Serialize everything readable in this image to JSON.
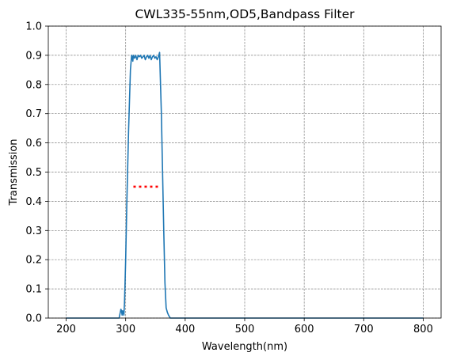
{
  "chart_data": {
    "type": "line",
    "title": "CWL335-55nm,OD5,Bandpass Filter",
    "xlabel": "Wavelength(nm)",
    "ylabel": "Transmission",
    "xlim": [
      170,
      830
    ],
    "ylim": [
      0.0,
      1.0
    ],
    "xticks": [
      200,
      300,
      400,
      500,
      600,
      700,
      800
    ],
    "yticks": [
      0.0,
      0.1,
      0.2,
      0.3,
      0.4,
      0.5,
      0.6,
      0.7,
      0.8,
      0.9,
      1.0
    ],
    "grid": true,
    "colors": {
      "series": "#1f77b4",
      "marker": "#ff0000"
    },
    "series": [
      {
        "style": "solid",
        "x": [
          200,
          289,
          291,
          292,
          293,
          294,
          295,
          296,
          297,
          298,
          300,
          302,
          305,
          308,
          310,
          311,
          312,
          313,
          315,
          317,
          319,
          321,
          323,
          325,
          327,
          329,
          331,
          333,
          335,
          337,
          339,
          341,
          343,
          345,
          347,
          349,
          351,
          353,
          355,
          357,
          358,
          360,
          362,
          364,
          366,
          368,
          370,
          372,
          375,
          378,
          380,
          800
        ],
        "y": [
          0.0,
          0.0,
          0.02,
          0.03,
          0.025,
          0.01,
          0.025,
          0.02,
          0.01,
          0.05,
          0.2,
          0.4,
          0.65,
          0.85,
          0.9,
          0.895,
          0.88,
          0.9,
          0.89,
          0.9,
          0.885,
          0.9,
          0.895,
          0.9,
          0.89,
          0.895,
          0.9,
          0.885,
          0.895,
          0.9,
          0.89,
          0.9,
          0.885,
          0.895,
          0.9,
          0.89,
          0.895,
          0.885,
          0.895,
          0.91,
          0.84,
          0.7,
          0.5,
          0.3,
          0.12,
          0.035,
          0.02,
          0.01,
          0.0,
          0.0,
          0.0,
          0.0
        ]
      },
      {
        "style": "dotted",
        "x": [
          313,
          358
        ],
        "y": [
          0.45,
          0.45
        ]
      }
    ]
  }
}
